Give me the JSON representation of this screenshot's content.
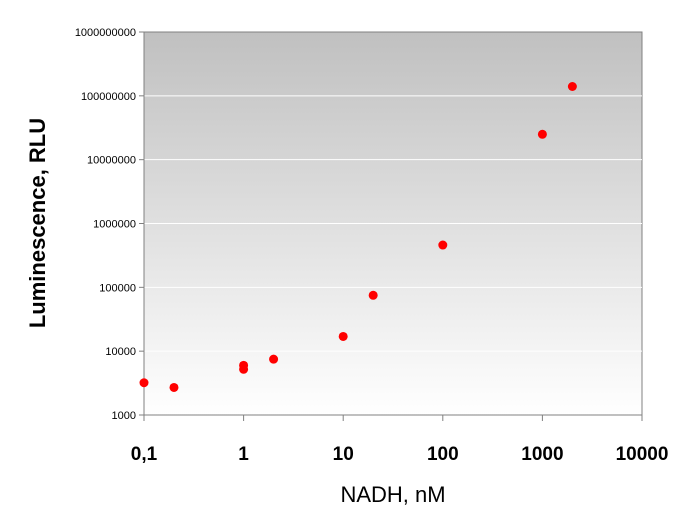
{
  "chart_data": {
    "type": "scatter",
    "title": "",
    "xlabel": "NADH, nM",
    "ylabel": "Luminescence, RLU",
    "x_scale": "log",
    "y_scale": "log",
    "xlim": [
      0.1,
      10000
    ],
    "ylim": [
      1000,
      1000000000
    ],
    "x_tick_values": [
      0.1,
      1,
      10,
      100,
      1000,
      10000
    ],
    "x_tick_labels": [
      "0,1",
      "1",
      "10",
      "100",
      "1000",
      "10000"
    ],
    "y_tick_values": [
      1000,
      10000,
      100000,
      1000000,
      10000000,
      100000000,
      1000000000
    ],
    "y_tick_labels": [
      "1000",
      "10000",
      "100000",
      "1000000",
      "10000000",
      "100000000",
      "1000000000"
    ],
    "grid": "horizontal major gridlines",
    "legend": "none",
    "series": [
      {
        "points": [
          {
            "x": 0.1,
            "y": 3200
          },
          {
            "x": 0.2,
            "y": 2700
          },
          {
            "x": 1,
            "y": 6000
          },
          {
            "x": 1,
            "y": 5200
          },
          {
            "x": 2,
            "y": 7500
          },
          {
            "x": 10,
            "y": 17000
          },
          {
            "x": 20,
            "y": 75000
          },
          {
            "x": 100,
            "y": 460000
          },
          {
            "x": 1000,
            "y": 25000000
          },
          {
            "x": 2000,
            "y": 140000000
          }
        ]
      }
    ]
  },
  "colors": {
    "marker": "#ff0000",
    "plot_bg_top": "#c0c0c0",
    "plot_bg_bottom": "#ffffff",
    "grid": "#ffffff",
    "axis": "#808080"
  }
}
